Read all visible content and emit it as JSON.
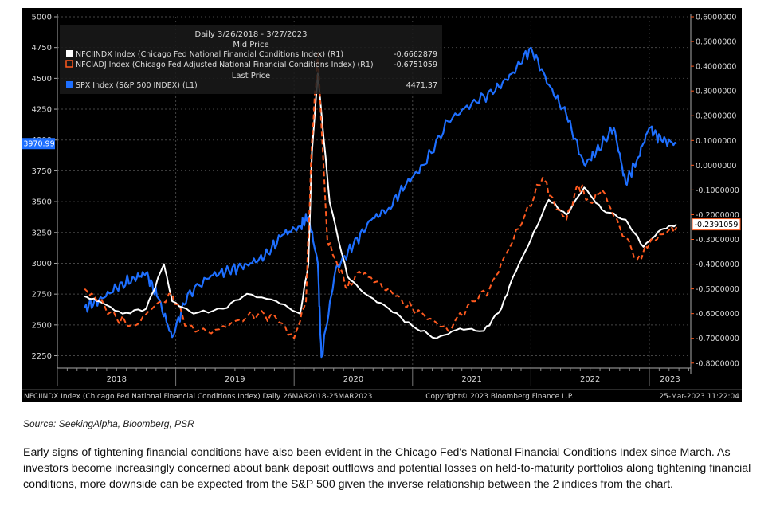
{
  "source_note": "Source: SeekingAlpha, Bloomberg, PSR",
  "paragraph": "Early signs of tightening financial conditions have also been evident in the Chicago Fed's National Financial Conditions Index since March. As investors become increasingly concerned about bank deposit outflows and potential losses on held-to-maturity portfolios along tightening financial conditions, more downside can be expected from the S&P 500 given the inverse relationship between the 2 indices from the chart.",
  "chart_data": {
    "type": "line",
    "legend": {
      "header": "Daily 3/26/2018 - 3/27/2023",
      "subheader1": "Mid Price",
      "subheader2": "Last Price",
      "placement": "top-left",
      "entries": [
        {
          "label": "NFCIINDX Index (Chicago Fed National Financial Conditions Index) (R1)",
          "value": "-0.6662879",
          "color": "#ffffff"
        },
        {
          "label": "NFCIADJ Index (Chicago Fed Adjusted National Financial Conditions Index) (R1)",
          "value": "-0.6751059",
          "color": "#ff5a1f"
        },
        {
          "label": "SPX Index (S&P 500 INDEX) (L1)",
          "value": "4471.37",
          "color": "#1e6fff"
        }
      ]
    },
    "left_axis": {
      "ticks": [
        "5000",
        "4750",
        "4500",
        "4250",
        "4000",
        "3750",
        "3500",
        "3250",
        "3000",
        "2750",
        "2500",
        "2250"
      ],
      "ylim": [
        2150,
        5000
      ],
      "current_label": "3970.99"
    },
    "right_axis": {
      "ticks": [
        "0.6000000",
        "0.5000000",
        "0.4000000",
        "0.3000000",
        "0.2000000",
        "0.1000000",
        "0.0000000",
        "-0.1000000",
        "-0.2000000",
        "-0.3000000",
        "-0.4000000",
        "-0.5000000",
        "-0.6000000",
        "-0.7000000",
        "-0.8000000"
      ],
      "ylim": [
        -0.82,
        0.6
      ],
      "current_label": "-0.2391059"
    },
    "x_labels": [
      "2018",
      "2019",
      "2020",
      "2021",
      "2022",
      "2023"
    ],
    "grid": true,
    "footer_left": "NFCIINDX Index (Chicago Fed National Financial Conditions Index)  Daily 26MAR2018-25MAR2023",
    "footer_center": "Copyright© 2023 Bloomberg Finance L.P.",
    "footer_right": "25-Mar-2023 11:22:04",
    "series": [
      {
        "name": "SPX Index (S&P 500 INDEX) (L1)",
        "color": "#1e6fff",
        "axis": "left",
        "x": [
          2018.23,
          2018.35,
          2018.5,
          2018.65,
          2018.75,
          2018.85,
          2018.97,
          2019.1,
          2019.3,
          2019.45,
          2019.6,
          2019.75,
          2019.9,
          2020.05,
          2020.12,
          2020.2,
          2020.23,
          2020.35,
          2020.5,
          2020.65,
          2020.8,
          2020.95,
          2021.1,
          2021.3,
          2021.5,
          2021.7,
          2021.85,
          2022.0,
          2022.15,
          2022.3,
          2022.45,
          2022.55,
          2022.7,
          2022.8,
          2022.9,
          2023.0,
          2023.1,
          2023.23
        ],
        "values": [
          2640,
          2700,
          2800,
          2880,
          2920,
          2720,
          2400,
          2750,
          2900,
          2940,
          2990,
          3050,
          3230,
          3300,
          3380,
          3000,
          2240,
          2950,
          3150,
          3350,
          3450,
          3650,
          3800,
          4150,
          4300,
          4400,
          4550,
          4750,
          4450,
          4200,
          3800,
          3900,
          4100,
          3650,
          3850,
          4100,
          4000,
          3970
        ]
      },
      {
        "name": "NFCIINDX Index (Chicago Fed National Financial Conditions Index) (R1)",
        "color": "#ffffff",
        "axis": "right",
        "x": [
          2018.23,
          2018.35,
          2018.55,
          2018.75,
          2018.9,
          2018.97,
          2019.15,
          2019.4,
          2019.6,
          2019.85,
          2020.05,
          2020.12,
          2020.15,
          2020.2,
          2020.3,
          2020.45,
          2020.6,
          2020.8,
          2021.0,
          2021.2,
          2021.4,
          2021.6,
          2021.75,
          2021.85,
          2022.0,
          2022.15,
          2022.3,
          2022.45,
          2022.6,
          2022.8,
          2022.95,
          2023.1,
          2023.23
        ],
        "values": [
          -0.53,
          -0.55,
          -0.6,
          -0.58,
          -0.4,
          -0.55,
          -0.6,
          -0.58,
          -0.52,
          -0.55,
          -0.6,
          -0.4,
          0.05,
          0.37,
          -0.15,
          -0.45,
          -0.52,
          -0.58,
          -0.65,
          -0.7,
          -0.66,
          -0.67,
          -0.58,
          -0.45,
          -0.3,
          -0.14,
          -0.2,
          -0.09,
          -0.18,
          -0.22,
          -0.33,
          -0.26,
          -0.239
        ]
      },
      {
        "name": "NFCIADJ Index (Chicago Fed Adjusted National Financial Conditions Index) (R1)",
        "color": "#ff5a1f",
        "axis": "right",
        "x": [
          2018.23,
          2018.35,
          2018.5,
          2018.65,
          2018.8,
          2018.97,
          2019.1,
          2019.3,
          2019.5,
          2019.7,
          2019.85,
          2020.0,
          2020.1,
          2020.15,
          2020.2,
          2020.28,
          2020.35,
          2020.45,
          2020.55,
          2020.7,
          2020.85,
          2021.0,
          2021.15,
          2021.3,
          2021.5,
          2021.65,
          2021.8,
          2021.95,
          2022.1,
          2022.2,
          2022.3,
          2022.4,
          2022.5,
          2022.6,
          2022.75,
          2022.9,
          2023.0,
          2023.1,
          2023.23
        ],
        "values": [
          -0.5,
          -0.55,
          -0.62,
          -0.65,
          -0.58,
          -0.52,
          -0.65,
          -0.68,
          -0.63,
          -0.6,
          -0.62,
          -0.7,
          -0.55,
          0.1,
          0.45,
          -0.3,
          -0.38,
          -0.5,
          -0.43,
          -0.47,
          -0.53,
          -0.58,
          -0.62,
          -0.67,
          -0.55,
          -0.5,
          -0.35,
          -0.2,
          -0.05,
          -0.16,
          -0.22,
          -0.08,
          -0.15,
          -0.1,
          -0.25,
          -0.38,
          -0.32,
          -0.28,
          -0.25
        ]
      }
    ]
  }
}
